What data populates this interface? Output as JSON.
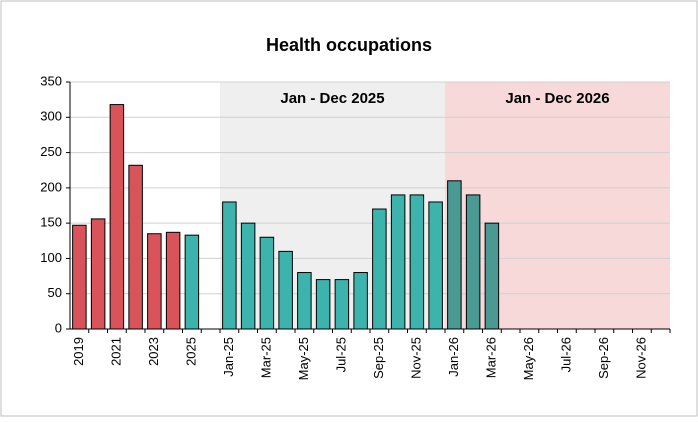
{
  "chart_data": {
    "type": "bar",
    "title": "Health occupations",
    "categories": [
      "2019",
      null,
      "2021",
      null,
      "2023",
      null,
      "2025",
      null,
      "Jan-25",
      null,
      "Mar-25",
      null,
      "May-25",
      null,
      "Jul-25",
      null,
      "Sep-25",
      null,
      "Nov-25",
      null,
      "Jan-26",
      null,
      "Mar-26",
      null,
      "May-26",
      null,
      "Jul-26",
      null,
      "Sep-26",
      null,
      "Nov-26",
      null
    ],
    "values": [
      147,
      156,
      318,
      232,
      135,
      137,
      133,
      null,
      180,
      150,
      130,
      110,
      80,
      70,
      70,
      80,
      170,
      190,
      190,
      180,
      210,
      190,
      150,
      null,
      null,
      null,
      null,
      null,
      null,
      null,
      null,
      null
    ],
    "colors": [
      "#d9545a",
      "#d9545a",
      "#d9545a",
      "#d9545a",
      "#d9545a",
      "#d9545a",
      "#3cb4ad",
      null,
      "#3cb4ad",
      "#3cb4ad",
      "#3cb4ad",
      "#3cb4ad",
      "#3cb4ad",
      "#3cb4ad",
      "#3cb4ad",
      "#3cb4ad",
      "#3cb4ad",
      "#3cb4ad",
      "#3cb4ad",
      "#3cb4ad",
      "#4a9992",
      "#4a9992",
      "#4a9992",
      null,
      null,
      null,
      null,
      null,
      null,
      null,
      null,
      null
    ],
    "regions": [
      {
        "label": "Jan - Dec 2025",
        "start": 8,
        "end": 19,
        "color": "#efefef"
      },
      {
        "label": "Jan - Dec 2026",
        "start": 20,
        "end": 31,
        "color": "#f7d9da"
      }
    ],
    "ylim": [
      0,
      350
    ],
    "yticks": [
      0,
      50,
      100,
      150,
      200,
      250,
      300,
      350
    ],
    "grid": true
  }
}
